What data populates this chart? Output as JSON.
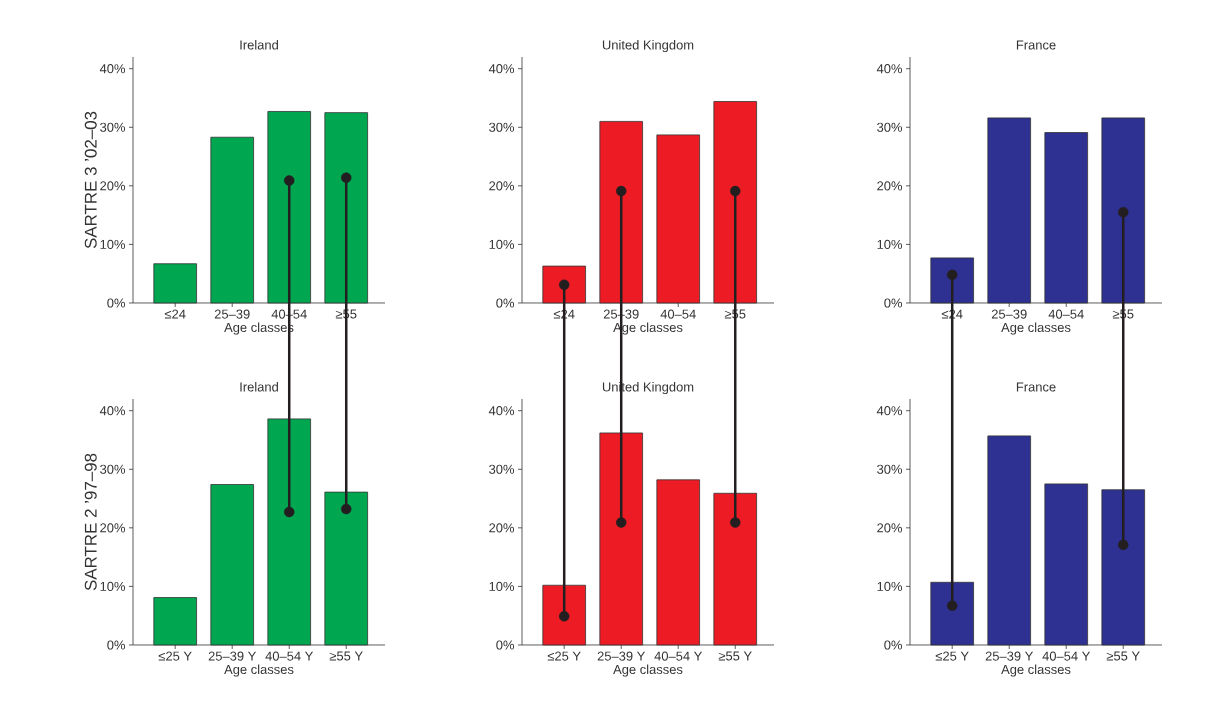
{
  "chart_data": [
    {
      "type": "bar",
      "title": "Ireland",
      "xlabel": "Age classes",
      "ylabel": "SARTRE 3 ’02–03",
      "categories": [
        "≤24",
        "25–39",
        "40–54",
        "≥55"
      ],
      "ylim": [
        0,
        42
      ],
      "yticks": [
        {
          "value": 0,
          "label": "0%"
        },
        {
          "value": 10,
          "label": "10%"
        },
        {
          "value": 20,
          "label": "20%"
        },
        {
          "value": 30,
          "label": "30%"
        },
        {
          "value": 40,
          "label": "40%"
        }
      ],
      "series": [
        {
          "color": "#00a650",
          "values": [
            6.7,
            28.3,
            32.7,
            32.5
          ]
        },
        {
          "type": "scatter",
          "color": "#231f20",
          "marker": "circle",
          "x": [
            "≤24",
            "25–39",
            "40–54",
            "≥55"
          ],
          "values": [
            null,
            null,
            20.9,
            21.4
          ]
        }
      ]
    },
    {
      "type": "bar",
      "title": "United Kingdom",
      "xlabel": "Age classes",
      "categories": [
        "≤24",
        "25–39",
        "40–54",
        "≥55"
      ],
      "ylim": [
        0,
        42
      ],
      "yticks": [
        {
          "value": 0,
          "label": "0%"
        },
        {
          "value": 10,
          "label": "10%"
        },
        {
          "value": 20,
          "label": "20%"
        },
        {
          "value": 30,
          "label": "30%"
        },
        {
          "value": 40,
          "label": "40%"
        }
      ],
      "series": [
        {
          "color": "#ed1c24",
          "values": [
            6.3,
            31.0,
            28.7,
            34.4
          ]
        },
        {
          "type": "scatter",
          "color": "#231f20",
          "marker": "circle",
          "x": [
            "≤24",
            "25–39",
            "40–54",
            "≥55"
          ],
          "values": [
            3.1,
            19.1,
            null,
            19.1
          ]
        }
      ]
    },
    {
      "type": "bar",
      "title": "France",
      "xlabel": "Age classes",
      "categories": [
        "≤24",
        "25–39",
        "40–54",
        "≥55"
      ],
      "ylim": [
        0,
        42
      ],
      "yticks": [
        {
          "value": 0,
          "label": "0%"
        },
        {
          "value": 10,
          "label": "10%"
        },
        {
          "value": 20,
          "label": "20%"
        },
        {
          "value": 30,
          "label": "30%"
        },
        {
          "value": 40,
          "label": "40%"
        }
      ],
      "series": [
        {
          "color": "#2e3192",
          "values": [
            7.7,
            31.6,
            29.1,
            31.6
          ]
        },
        {
          "type": "scatter",
          "color": "#231f20",
          "marker": "circle",
          "x": [
            "≤24",
            "25–39",
            "40–54",
            "≥55"
          ],
          "values": [
            4.8,
            null,
            null,
            15.5
          ]
        }
      ]
    },
    {
      "type": "bar",
      "title": "Ireland",
      "xlabel": "Age classes",
      "ylabel": "SARTRE 2 ’97–98",
      "categories": [
        "≤25 Y",
        "25–39 Y",
        "40–54 Y",
        "≥55 Y"
      ],
      "ylim": [
        0,
        42
      ],
      "yticks": [
        {
          "value": 0,
          "label": "0%"
        },
        {
          "value": 10,
          "label": "10%"
        },
        {
          "value": 20,
          "label": "20%"
        },
        {
          "value": 30,
          "label": "30%"
        },
        {
          "value": 40,
          "label": "40%"
        }
      ],
      "series": [
        {
          "color": "#00a650",
          "values": [
            8.1,
            27.4,
            38.6,
            26.1
          ]
        },
        {
          "type": "scatter",
          "color": "#231f20",
          "marker": "circle",
          "x": [
            "≤25 Y",
            "25–39 Y",
            "40–54 Y",
            "≥55 Y"
          ],
          "values": [
            null,
            null,
            22.7,
            23.2
          ]
        }
      ]
    },
    {
      "type": "bar",
      "title": "United Kingdom",
      "xlabel": "Age classes",
      "categories": [
        "≤25 Y",
        "25–39 Y",
        "40–54 Y",
        "≥55 Y"
      ],
      "ylim": [
        0,
        42
      ],
      "yticks": [
        {
          "value": 0,
          "label": "0%"
        },
        {
          "value": 10,
          "label": "10%"
        },
        {
          "value": 20,
          "label": "20%"
        },
        {
          "value": 30,
          "label": "30%"
        },
        {
          "value": 40,
          "label": "40%"
        }
      ],
      "series": [
        {
          "color": "#ed1c24",
          "values": [
            10.2,
            36.2,
            28.2,
            25.9
          ]
        },
        {
          "type": "scatter",
          "color": "#231f20",
          "marker": "circle",
          "x": [
            "≤25 Y",
            "25–39 Y",
            "40–54 Y",
            "≥55 Y"
          ],
          "values": [
            4.9,
            20.9,
            null,
            20.9
          ]
        }
      ]
    },
    {
      "type": "bar",
      "title": "France",
      "xlabel": "Age classes",
      "categories": [
        "≤25 Y",
        "25–39 Y",
        "40–54 Y",
        "≥55 Y"
      ],
      "ylim": [
        0,
        42
      ],
      "yticks": [
        {
          "value": 0,
          "label": "0%"
        },
        {
          "value": 10,
          "label": "10%"
        },
        {
          "value": 20,
          "label": "20%"
        },
        {
          "value": 30,
          "label": "30%"
        },
        {
          "value": 40,
          "label": "40%"
        }
      ],
      "series": [
        {
          "color": "#2e3192",
          "values": [
            10.7,
            35.7,
            27.5,
            26.5
          ]
        },
        {
          "type": "scatter",
          "color": "#231f20",
          "marker": "circle",
          "x": [
            "≤25 Y",
            "25–39 Y",
            "40–54 Y",
            "≥55 Y"
          ],
          "values": [
            6.7,
            null,
            null,
            17.1
          ]
        }
      ]
    }
  ]
}
